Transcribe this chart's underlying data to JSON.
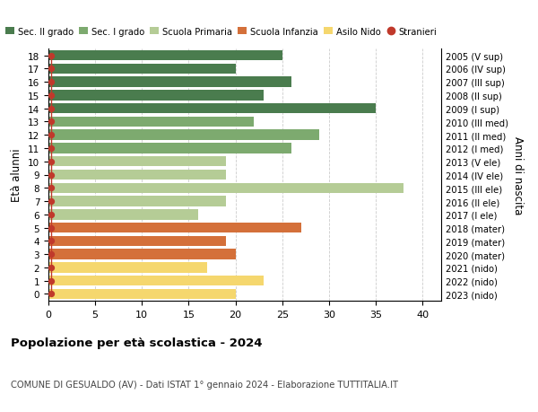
{
  "ages": [
    18,
    17,
    16,
    15,
    14,
    13,
    12,
    11,
    10,
    9,
    8,
    7,
    6,
    5,
    4,
    3,
    2,
    1,
    0
  ],
  "values": [
    25,
    20,
    26,
    23,
    35,
    22,
    29,
    26,
    19,
    19,
    38,
    19,
    16,
    27,
    19,
    20,
    17,
    23,
    20
  ],
  "right_labels": [
    "2005 (V sup)",
    "2006 (IV sup)",
    "2007 (III sup)",
    "2008 (II sup)",
    "2009 (I sup)",
    "2010 (III med)",
    "2011 (II med)",
    "2012 (I med)",
    "2013 (V ele)",
    "2014 (IV ele)",
    "2015 (III ele)",
    "2016 (II ele)",
    "2017 (I ele)",
    "2018 (mater)",
    "2019 (mater)",
    "2020 (mater)",
    "2021 (nido)",
    "2022 (nido)",
    "2023 (nido)"
  ],
  "colors": {
    "sec2": "#4a7c4e",
    "sec1": "#7daa6f",
    "primaria": "#b5cc96",
    "infanzia": "#d4703a",
    "nido": "#f5d76e",
    "stranieri": "#c0392b"
  },
  "bar_colors": [
    "#4a7c4e",
    "#4a7c4e",
    "#4a7c4e",
    "#4a7c4e",
    "#4a7c4e",
    "#7daa6f",
    "#7daa6f",
    "#7daa6f",
    "#b5cc96",
    "#b5cc96",
    "#b5cc96",
    "#b5cc96",
    "#b5cc96",
    "#d4703a",
    "#d4703a",
    "#d4703a",
    "#f5d76e",
    "#f5d76e",
    "#f5d76e"
  ],
  "legend_labels": [
    "Sec. II grado",
    "Sec. I grado",
    "Scuola Primaria",
    "Scuola Infanzia",
    "Asilo Nido",
    "Stranieri"
  ],
  "legend_colors": [
    "#4a7c4e",
    "#7daa6f",
    "#b5cc96",
    "#d4703a",
    "#f5d76e",
    "#c0392b"
  ],
  "ylabel": "Età alunni",
  "right_ylabel": "Anni di nascita",
  "title": "Popolazione per età scolastica - 2024",
  "subtitle": "COMUNE DI GESUALDO (AV) - Dati ISTAT 1° gennaio 2024 - Elaborazione TUTTITALIA.IT",
  "xlim": [
    0,
    42
  ],
  "xticks": [
    0,
    5,
    10,
    15,
    20,
    25,
    30,
    35,
    40
  ],
  "bg_color": "#ffffff",
  "grid_color": "#cccccc"
}
